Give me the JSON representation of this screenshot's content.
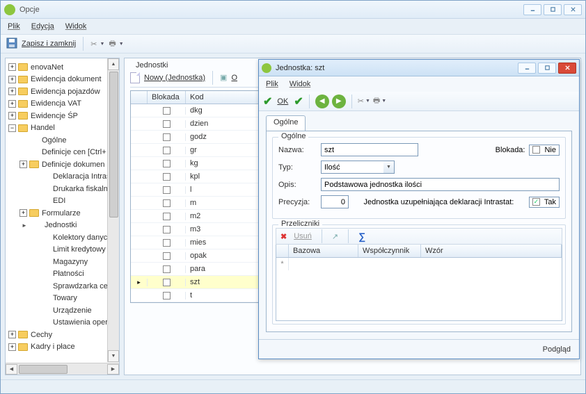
{
  "mainWindow": {
    "title": "Opcje",
    "menu": [
      "Plik",
      "Edycja",
      "Widok"
    ],
    "toolbar": {
      "saveAndClose": "Zapisz i zamknij"
    }
  },
  "tree": {
    "items": [
      {
        "label": "enovaNet",
        "level": 0,
        "exp": "+",
        "folder": true
      },
      {
        "label": "Ewidencja dokument",
        "level": 0,
        "exp": "+",
        "folder": true
      },
      {
        "label": "Ewidencja pojazdów",
        "level": 0,
        "exp": "+",
        "folder": true
      },
      {
        "label": "Ewidencja VAT",
        "level": 0,
        "exp": "+",
        "folder": true
      },
      {
        "label": "Ewidencje ŚP",
        "level": 0,
        "exp": "+",
        "folder": true
      },
      {
        "label": "Handel",
        "level": 0,
        "exp": "−",
        "folder": true
      },
      {
        "label": "Ogólne",
        "level": 1,
        "folder": false
      },
      {
        "label": "Definicje cen [Ctrl+",
        "level": 1,
        "folder": false
      },
      {
        "label": "Definicje dokumen",
        "level": 1,
        "exp": "+",
        "folder": true
      },
      {
        "label": "Deklaracja Intrasta",
        "level": 2,
        "folder": false
      },
      {
        "label": "Drukarka fiskalna",
        "level": 2,
        "folder": false
      },
      {
        "label": "EDI",
        "level": 2,
        "folder": false
      },
      {
        "label": "Formularze",
        "level": 1,
        "exp": "+",
        "folder": true
      },
      {
        "label": "Jednostki",
        "level": 1,
        "bullet": "►",
        "folder": false
      },
      {
        "label": "Kolektory danych",
        "level": 2,
        "folder": false
      },
      {
        "label": "Limit kredytowy",
        "level": 2,
        "folder": false
      },
      {
        "label": "Magazyny",
        "level": 2,
        "folder": false
      },
      {
        "label": "Płatności",
        "level": 2,
        "folder": false
      },
      {
        "label": "Sprawdzarka cen",
        "level": 2,
        "folder": false
      },
      {
        "label": "Towary",
        "level": 2,
        "folder": false
      },
      {
        "label": "Urządzenie",
        "level": 2,
        "folder": false
      },
      {
        "label": "Ustawienia opera",
        "level": 2,
        "folder": false
      },
      {
        "label": "Cechy",
        "level": 0,
        "exp": "+",
        "folder": true
      },
      {
        "label": "Kadry i płace",
        "level": 0,
        "exp": "+",
        "folder": true
      }
    ]
  },
  "grid": {
    "title": "Jednostki",
    "newLabel": "Nowy (Jednostka)",
    "columns": {
      "blokada": "Blokada",
      "kod": "Kod"
    },
    "rows": [
      {
        "kod": "dkg",
        "sel": false
      },
      {
        "kod": "dzien",
        "sel": false
      },
      {
        "kod": "godz",
        "sel": false
      },
      {
        "kod": "gr",
        "sel": false
      },
      {
        "kod": "kg",
        "sel": false
      },
      {
        "kod": "kpl",
        "sel": false
      },
      {
        "kod": "l",
        "sel": false
      },
      {
        "kod": "m",
        "sel": false
      },
      {
        "kod": "m2",
        "sel": false
      },
      {
        "kod": "m3",
        "sel": false
      },
      {
        "kod": "mies",
        "sel": false
      },
      {
        "kod": "opak",
        "sel": false
      },
      {
        "kod": "para",
        "sel": false
      },
      {
        "kod": "szt",
        "sel": true
      },
      {
        "kod": "t",
        "sel": false
      }
    ]
  },
  "subWindow": {
    "title": "Jednostka: szt",
    "menu": [
      "Plik",
      "Widok"
    ],
    "okLabel": "OK",
    "tabLabel": "Ogólne",
    "groupLabel": "Ogólne",
    "fields": {
      "nazwaLabel": "Nazwa:",
      "nazwaValue": "szt",
      "blokadaLabel": "Blokada:",
      "blokadaValue": "Nie",
      "typLabel": "Typ:",
      "typValue": "Ilość",
      "opisLabel": "Opis:",
      "opisValue": "Podstawowa jednostka ilości",
      "precyzjaLabel": "Precyzja:",
      "precyzjaValue": "0",
      "intrastatLabel": "Jednostka uzupełniająca deklaracji Intrastat:",
      "intrastatValue": "Tak"
    },
    "przeliczniki": {
      "groupLabel": "Przeliczniki",
      "deleteLabel": "Usuń",
      "columns": {
        "bazowa": "Bazowa",
        "wspolczynnik": "Współczynnik",
        "wzor": "Wzór"
      }
    },
    "statusLabel": "Podgląd"
  },
  "colors": {
    "accent": "#5a8cc3",
    "green": "#8dc63f",
    "close": "#d94a38",
    "rowSelected": "#ffffcc"
  }
}
